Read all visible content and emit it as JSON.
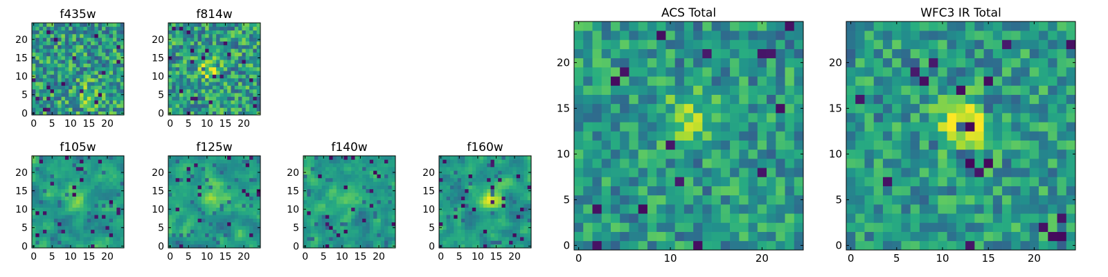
{
  "chart_data": [
    {
      "type": "heatmap",
      "title": "f435w",
      "nx": 25,
      "ny": 25,
      "xticks": [
        0,
        5,
        10,
        15,
        20
      ],
      "yticks": [
        0,
        5,
        10,
        15,
        20
      ],
      "colormap": "viridis",
      "blob_center": [
        15,
        5
      ],
      "blob_strength": 0.25,
      "pixel_noise": "high",
      "xlabel": "",
      "ylabel": ""
    },
    {
      "type": "heatmap",
      "title": "f814w",
      "nx": 25,
      "ny": 25,
      "xticks": [
        0,
        5,
        10,
        15,
        20
      ],
      "yticks": [
        0,
        5,
        10,
        15,
        20
      ],
      "colormap": "viridis",
      "blob_center": [
        11,
        12
      ],
      "blob_strength": 0.35,
      "pixel_noise": "high",
      "xlabel": "",
      "ylabel": ""
    },
    {
      "type": "heatmap",
      "title": "f105w",
      "nx": 25,
      "ny": 25,
      "xticks": [
        0,
        5,
        10,
        15,
        20
      ],
      "yticks": [
        0,
        5,
        10,
        15,
        20
      ],
      "colormap": "viridis",
      "blob_center": [
        11,
        13
      ],
      "blob_strength": 0.3,
      "pixel_noise": "smooth",
      "xlabel": "",
      "ylabel": ""
    },
    {
      "type": "heatmap",
      "title": "f125w",
      "nx": 25,
      "ny": 25,
      "xticks": [
        0,
        5,
        10,
        15,
        20
      ],
      "yticks": [
        0,
        5,
        10,
        15,
        20
      ],
      "colormap": "viridis",
      "blob_center": [
        12,
        14
      ],
      "blob_strength": 0.3,
      "pixel_noise": "smooth",
      "xlabel": "",
      "ylabel": ""
    },
    {
      "type": "heatmap",
      "title": "f140w",
      "nx": 25,
      "ny": 25,
      "xticks": [
        0,
        5,
        10,
        15,
        20
      ],
      "yticks": [
        0,
        5,
        10,
        15,
        20
      ],
      "colormap": "viridis",
      "blob_center": [
        12,
        13
      ],
      "blob_strength": 0.3,
      "pixel_noise": "smooth",
      "xlabel": "",
      "ylabel": ""
    },
    {
      "type": "heatmap",
      "title": "f160w",
      "nx": 25,
      "ny": 25,
      "xticks": [
        0,
        5,
        10,
        15,
        20
      ],
      "yticks": [
        0,
        5,
        10,
        15,
        20
      ],
      "colormap": "viridis",
      "blob_center": [
        13,
        13
      ],
      "blob_strength": 0.35,
      "pixel_noise": "smooth",
      "xlabel": "",
      "ylabel": ""
    },
    {
      "type": "heatmap",
      "title": "ACS Total",
      "nx": 25,
      "ny": 25,
      "xticks": [
        0,
        10,
        20
      ],
      "yticks": [
        0,
        5,
        10,
        15,
        20
      ],
      "colormap": "viridis",
      "blob_center": [
        12,
        14
      ],
      "blob_strength": 0.25,
      "pixel_noise": "medium",
      "xlabel": "",
      "ylabel": ""
    },
    {
      "type": "heatmap",
      "title": "WFC3 IR Total",
      "nx": 25,
      "ny": 25,
      "xticks": [
        0,
        5,
        10,
        15,
        20
      ],
      "yticks": [
        0,
        5,
        10,
        15,
        20
      ],
      "colormap": "viridis",
      "blob_center": [
        12,
        13
      ],
      "blob_strength": 0.45,
      "pixel_noise": "medium",
      "xlabel": "",
      "ylabel": ""
    }
  ],
  "colors": {
    "viridis_low": "#440154",
    "viridis_mid": "#21918c",
    "viridis_high": "#fde725",
    "axes_edge": "#000000",
    "background": "#ffffff"
  }
}
